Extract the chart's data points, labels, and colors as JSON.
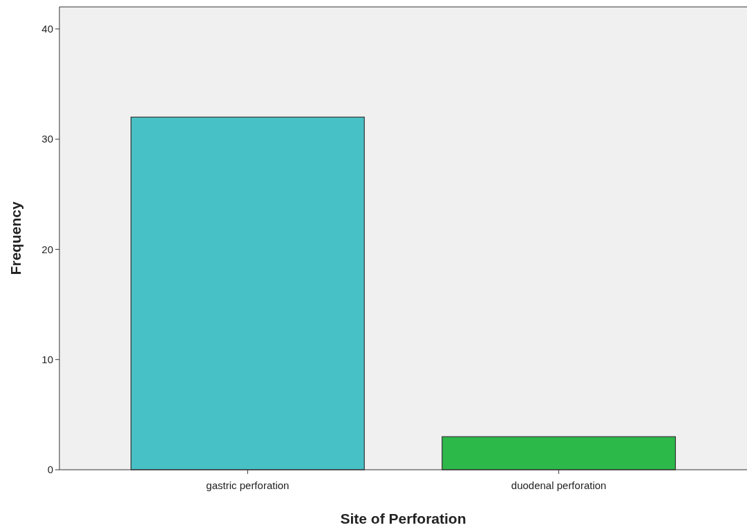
{
  "chart_data": {
    "type": "bar",
    "xlabel": "Site of Perforation",
    "ylabel": "Frequency",
    "categories": [
      "gastric perforation",
      "duodenal perforation"
    ],
    "values": [
      32,
      3
    ],
    "colors": [
      "#48c1c6",
      "#2db84a"
    ],
    "ylim": [
      0,
      42
    ],
    "yticks": [
      0,
      10,
      20,
      30,
      40
    ],
    "grid": false
  }
}
